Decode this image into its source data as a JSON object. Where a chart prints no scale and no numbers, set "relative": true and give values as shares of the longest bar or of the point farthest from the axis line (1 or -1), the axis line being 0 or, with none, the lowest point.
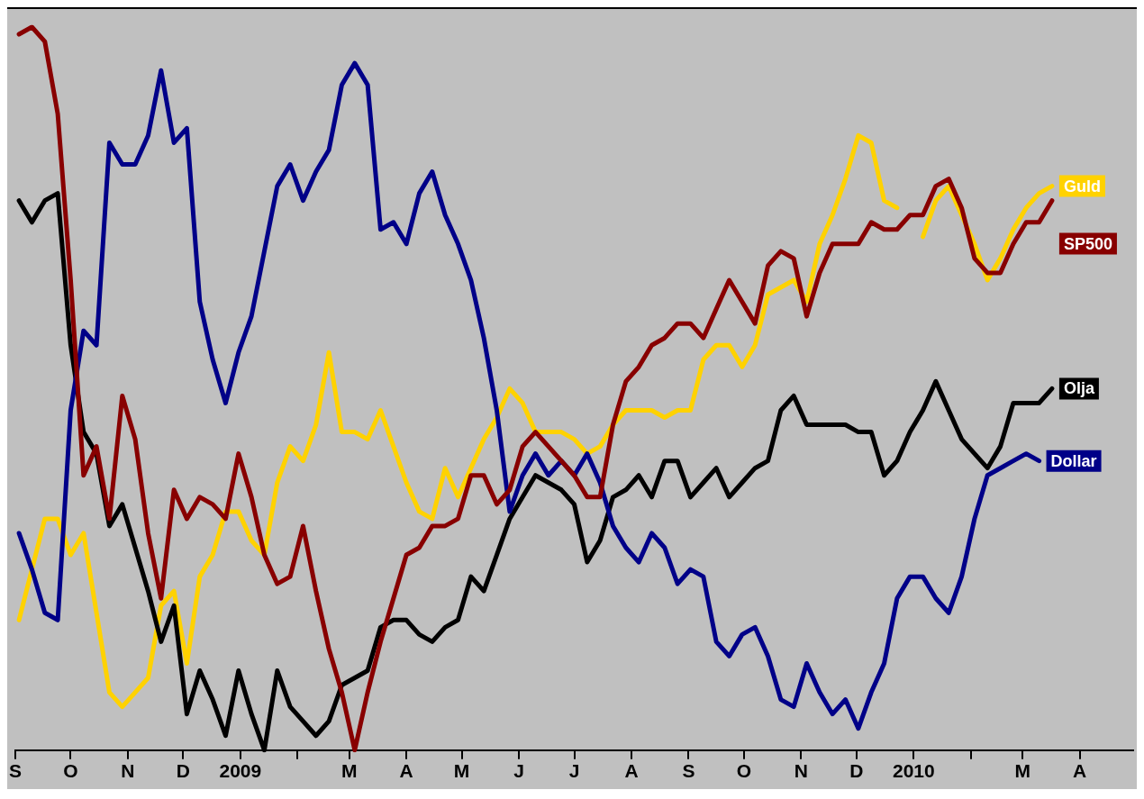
{
  "chart_data": {
    "type": "line",
    "relative": true,
    "x": [
      "2008-09-03",
      "2008-09-10",
      "2008-09-17",
      "2008-09-24",
      "2008-10-01",
      "2008-10-08",
      "2008-10-15",
      "2008-10-22",
      "2008-10-29",
      "2008-11-05",
      "2008-11-12",
      "2008-11-19",
      "2008-11-26",
      "2008-12-03",
      "2008-12-10",
      "2008-12-17",
      "2008-12-24",
      "2008-12-31",
      "2009-01-07",
      "2009-01-14",
      "2009-01-21",
      "2009-01-28",
      "2009-02-04",
      "2009-02-11",
      "2009-02-18",
      "2009-02-25",
      "2009-03-04",
      "2009-03-11",
      "2009-03-18",
      "2009-03-25",
      "2009-04-01",
      "2009-04-08",
      "2009-04-15",
      "2009-04-22",
      "2009-04-29",
      "2009-05-06",
      "2009-05-13",
      "2009-05-20",
      "2009-05-27",
      "2009-06-03",
      "2009-06-10",
      "2009-06-17",
      "2009-06-24",
      "2009-07-01",
      "2009-07-08",
      "2009-07-15",
      "2009-07-22",
      "2009-07-29",
      "2009-08-05",
      "2009-08-12",
      "2009-08-19",
      "2009-08-26",
      "2009-09-02",
      "2009-09-09",
      "2009-09-16",
      "2009-09-23",
      "2009-09-30",
      "2009-10-07",
      "2009-10-14",
      "2009-10-21",
      "2009-10-28",
      "2009-11-04",
      "2009-11-11",
      "2009-11-18",
      "2009-11-25",
      "2009-12-02",
      "2009-12-09",
      "2009-12-16",
      "2009-12-23",
      "2009-12-30",
      "2010-01-06",
      "2010-01-13",
      "2010-01-20",
      "2010-01-27",
      "2010-02-03",
      "2010-02-10",
      "2010-02-17",
      "2010-02-24",
      "2010-03-03",
      "2010-03-10",
      "2010-03-17"
    ],
    "series": [
      {
        "name": "SP500",
        "color": "#880000",
        "values": [
          0.99,
          1,
          0.98,
          0.88,
          0.65,
          0.38,
          0.42,
          0.32,
          0.49,
          0.43,
          0.3,
          0.21,
          0.36,
          0.32,
          0.35,
          0.34,
          0.32,
          0.41,
          0.35,
          0.27,
          0.23,
          0.24,
          0.31,
          0.22,
          0.14,
          0.08,
          0,
          0.08,
          0.15,
          0.21,
          0.27,
          0.28,
          0.31,
          0.31,
          0.32,
          0.38,
          0.38,
          0.34,
          0.36,
          0.42,
          0.44,
          0.42,
          0.4,
          0.38,
          0.35,
          0.35,
          0.45,
          0.51,
          0.53,
          0.56,
          0.57,
          0.59,
          0.59,
          0.57,
          0.61,
          0.65,
          0.62,
          0.59,
          0.67,
          0.69,
          0.68,
          0.6,
          0.66,
          0.7,
          0.7,
          0.7,
          0.73,
          0.72,
          0.72,
          0.74,
          0.74,
          0.78,
          0.79,
          0.75,
          0.68,
          0.66,
          0.66,
          0.7,
          0.73,
          0.73,
          0.76
        ]
      },
      {
        "name": "Dollar",
        "color": "#000088",
        "values": [
          0.3,
          0.25,
          0.19,
          0.18,
          0.47,
          0.58,
          0.56,
          0.84,
          0.81,
          0.81,
          0.85,
          0.94,
          0.84,
          0.86,
          0.62,
          0.54,
          0.48,
          0.55,
          0.6,
          0.69,
          0.78,
          0.81,
          0.76,
          0.8,
          0.83,
          0.92,
          0.95,
          0.92,
          0.72,
          0.73,
          0.7,
          0.77,
          0.8,
          0.74,
          0.7,
          0.65,
          0.57,
          0.47,
          0.33,
          0.38,
          0.41,
          0.38,
          0.4,
          0.38,
          0.41,
          0.37,
          0.31,
          0.28,
          0.26,
          0.3,
          0.28,
          0.23,
          0.25,
          0.24,
          0.15,
          0.13,
          0.16,
          0.17,
          0.13,
          0.07,
          0.06,
          0.12,
          0.08,
          0.05,
          0.07,
          0.03,
          0.08,
          0.12,
          0.21,
          0.24,
          0.24,
          0.21,
          0.19,
          0.24,
          0.32,
          0.38,
          0.39,
          0.4,
          0.41,
          0.4,
          null
        ]
      },
      {
        "name": "Olja",
        "color": "#000000",
        "values": [
          0.76,
          0.73,
          0.76,
          0.77,
          0.56,
          0.44,
          0.41,
          0.31,
          0.34,
          0.28,
          0.22,
          0.15,
          0.2,
          0.05,
          0.11,
          0.07,
          0.02,
          0.11,
          0.05,
          0.0,
          0.11,
          0.06,
          0.04,
          0.02,
          0.04,
          0.09,
          0.1,
          0.11,
          0.17,
          0.18,
          0.18,
          0.16,
          0.15,
          0.17,
          0.18,
          0.24,
          0.22,
          0.27,
          0.32,
          0.35,
          0.38,
          0.37,
          0.36,
          0.34,
          0.26,
          0.29,
          0.35,
          0.36,
          0.38,
          0.35,
          0.4,
          0.4,
          0.35,
          0.37,
          0.39,
          0.35,
          0.37,
          0.39,
          0.4,
          0.47,
          0.49,
          0.45,
          0.45,
          0.45,
          0.45,
          0.44,
          0.44,
          0.38,
          0.4,
          0.44,
          0.47,
          0.51,
          0.47,
          0.43,
          0.41,
          0.39,
          0.42,
          0.48,
          0.48,
          0.48,
          0.5
        ]
      },
      {
        "name": "Guld",
        "color": "#ffd200",
        "values": [
          0.18,
          0.25,
          0.32,
          0.32,
          0.27,
          0.3,
          0.19,
          0.08,
          0.06,
          0.08,
          0.1,
          0.2,
          0.22,
          0.12,
          0.24,
          0.27,
          0.33,
          0.33,
          0.29,
          0.27,
          0.37,
          0.42,
          0.4,
          0.45,
          0.55,
          0.44,
          0.44,
          0.43,
          0.47,
          0.42,
          0.37,
          0.33,
          0.32,
          0.39,
          0.35,
          0.39,
          0.43,
          0.46,
          0.5,
          0.48,
          0.44,
          0.44,
          0.44,
          0.43,
          0.41,
          0.42,
          0.45,
          0.47,
          0.47,
          0.47,
          0.46,
          0.47,
          0.47,
          0.54,
          0.56,
          0.56,
          0.53,
          0.56,
          0.63,
          0.64,
          0.65,
          0.62,
          0.7,
          0.74,
          0.79,
          0.85,
          0.84,
          0.76,
          0.75,
          null,
          0.71,
          0.76,
          0.78,
          0.74,
          0.7,
          0.65,
          0.68,
          0.72,
          0.75,
          0.77,
          0.78
        ]
      }
    ],
    "xlim": [
      "2008-09-01",
      "2010-04-30"
    ],
    "xticks": [
      {
        "value": "2008-09-01",
        "label": "S"
      },
      {
        "value": "2008-10-01",
        "label": "O"
      },
      {
        "value": "2008-11-01",
        "label": "N"
      },
      {
        "value": "2008-12-01",
        "label": "D"
      },
      {
        "value": "2009-01-01",
        "label": "2009"
      },
      {
        "value": "2009-02-01",
        "label": null
      },
      {
        "value": "2009-03-01",
        "label": "M"
      },
      {
        "value": "2009-04-01",
        "label": "A"
      },
      {
        "value": "2009-05-01",
        "label": "M"
      },
      {
        "value": "2009-06-01",
        "label": "J"
      },
      {
        "value": "2009-07-01",
        "label": "J"
      },
      {
        "value": "2009-08-01",
        "label": "A"
      },
      {
        "value": "2009-09-01",
        "label": "S"
      },
      {
        "value": "2009-10-01",
        "label": "O"
      },
      {
        "value": "2009-11-01",
        "label": "N"
      },
      {
        "value": "2009-12-01",
        "label": "D"
      },
      {
        "value": "2010-01-01",
        "label": "2010"
      },
      {
        "value": "2010-02-01",
        "label": null
      },
      {
        "value": "2010-03-01",
        "label": "M"
      },
      {
        "value": "2010-04-01",
        "label": "A"
      }
    ]
  }
}
